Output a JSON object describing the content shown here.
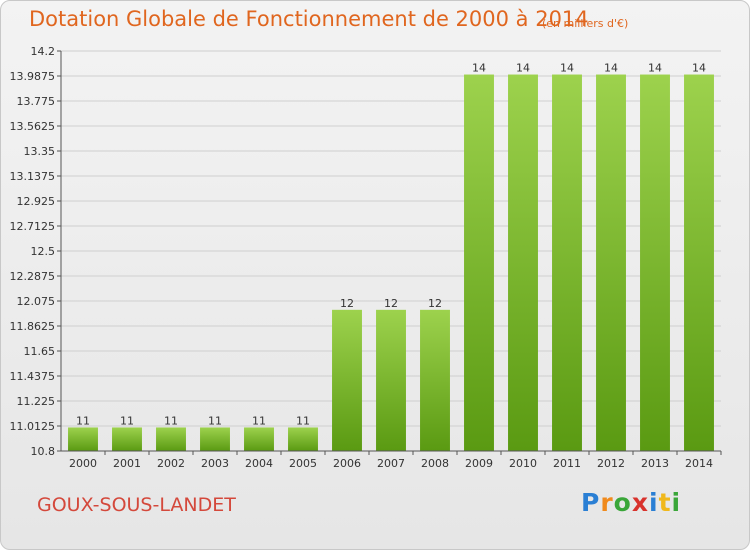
{
  "header": {
    "title": "Dotation Globale de Fonctionnement de 2000 à 2014",
    "unit": "(en milliers d'€)"
  },
  "footer": {
    "commune": "GOUX-SOUS-LANDET",
    "logo": [
      "P",
      "r",
      "o",
      "x",
      "i",
      "t",
      "i"
    ]
  },
  "colors": {
    "bar_top": "#9dd24d",
    "bar_bottom": "#5a9a12",
    "grid": "#cfcfcf"
  },
  "chart_data": {
    "type": "bar",
    "categories": [
      "2000",
      "2001",
      "2002",
      "2003",
      "2004",
      "2005",
      "2006",
      "2007",
      "2008",
      "2009",
      "2010",
      "2011",
      "2012",
      "2013",
      "2014"
    ],
    "values": [
      11,
      11,
      11,
      11,
      11,
      11,
      12,
      12,
      12,
      14,
      14,
      14,
      14,
      14,
      14
    ],
    "data_labels": [
      "11",
      "11",
      "11",
      "11",
      "11",
      "11",
      "12",
      "12",
      "12",
      "14",
      "14",
      "14",
      "14",
      "14",
      "14"
    ],
    "yticks": [
      "10.8",
      "11.0125",
      "11.225",
      "11.4375",
      "11.65",
      "11.8625",
      "12.075",
      "12.2875",
      "12.5",
      "12.7125",
      "12.925",
      "13.1375",
      "13.35",
      "13.5625",
      "13.775",
      "13.9875",
      "14.2"
    ],
    "ylim": [
      10.8,
      14.2
    ],
    "title": "Dotation Globale de Fonctionnement de 2000 à 2014",
    "xlabel": "",
    "ylabel": "",
    "grid": true
  }
}
